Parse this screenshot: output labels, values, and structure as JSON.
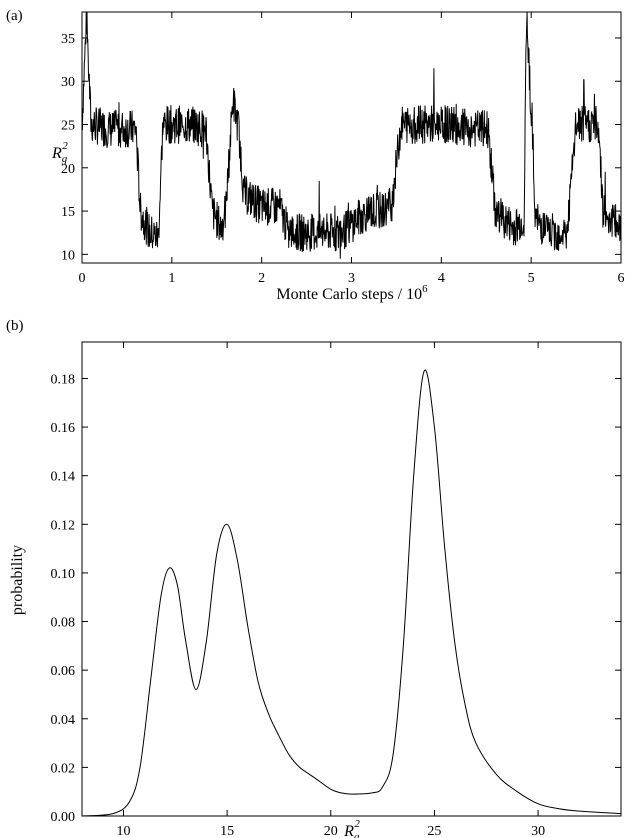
{
  "chart_data": [
    {
      "type": "line",
      "panel_label": "(a)",
      "xlabel": "Monte Carlo steps / 10",
      "xlabel_exponent": "6",
      "ylabel_base": "R",
      "ylabel_sub": "g",
      "ylabel_sup": "2",
      "xlim": [
        0,
        6
      ],
      "ylim": [
        9,
        38
      ],
      "x_ticks": [
        0,
        1,
        2,
        3,
        4,
        5,
        6
      ],
      "x_tick_labels": [
        "0",
        "1",
        "2",
        "3",
        "4",
        "5",
        "6"
      ],
      "y_ticks": [
        10,
        15,
        20,
        25,
        30,
        35
      ],
      "y_tick_labels": [
        "10",
        "15",
        "20",
        "25",
        "30",
        "35"
      ],
      "grid": false,
      "series": [
        {
          "x": [
            0,
            0.05,
            0.1,
            0.3,
            0.6,
            0.65,
            0.75,
            0.85,
            0.9,
            1.0,
            1.2,
            1.38,
            1.45,
            1.55,
            1.6,
            1.68,
            1.75,
            1.8,
            2.0,
            2.2,
            2.3,
            2.6,
            2.9,
            3.05,
            3.2,
            3.35,
            3.45,
            3.55,
            3.8,
            4.1,
            4.3,
            4.52,
            4.6,
            4.8,
            4.92,
            4.95,
            5.05,
            5.2,
            5.4,
            5.5,
            5.6,
            5.75,
            5.8,
            6.0
          ],
          "y": [
            25,
            37.5,
            25,
            24.5,
            24.5,
            15,
            12.5,
            12,
            25,
            25,
            25,
            24.5,
            15,
            13,
            15,
            28,
            24,
            17,
            15.5,
            15.5,
            12.5,
            12.5,
            12.5,
            14,
            15,
            15,
            16,
            25,
            25,
            25,
            24.5,
            24.5,
            15,
            13,
            14,
            38.5,
            14,
            12.5,
            12.5,
            25,
            25,
            25,
            15,
            13
          ]
        }
      ]
    },
    {
      "type": "line",
      "panel_label": "(b)",
      "xlabel_base": "R",
      "xlabel_sub": "g",
      "xlabel_sup": "2",
      "ylabel": "probability",
      "xlim": [
        8,
        34
      ],
      "ylim": [
        0,
        0.195
      ],
      "x_ticks": [
        10,
        15,
        20,
        25,
        30
      ],
      "x_tick_labels": [
        "10",
        "15",
        "20",
        "25",
        "30"
      ],
      "y_ticks": [
        0,
        0.02,
        0.04,
        0.06,
        0.08,
        0.1,
        0.12,
        0.14,
        0.16,
        0.18
      ],
      "y_tick_labels": [
        "0.00",
        "0.02",
        "0.04",
        "0.06",
        "0.08",
        "0.10",
        "0.12",
        "0.14",
        "0.16",
        "0.18"
      ],
      "grid": false,
      "series": [
        {
          "x": [
            8,
            9.5,
            10.3,
            10.8,
            11.3,
            11.8,
            12.2,
            12.6,
            13.0,
            13.5,
            14.0,
            14.5,
            15.0,
            15.5,
            16.0,
            16.5,
            17.0,
            17.5,
            18.0,
            18.5,
            19.0,
            19.5,
            20.0,
            20.5,
            21.0,
            22.0,
            22.5,
            23.0,
            23.5,
            24.0,
            24.5,
            25.0,
            25.5,
            26.0,
            26.5,
            27.0,
            28.0,
            29.0,
            30.0,
            31.0,
            32.0,
            34.0
          ],
          "y": [
            0,
            0.001,
            0.006,
            0.02,
            0.055,
            0.09,
            0.102,
            0.095,
            0.072,
            0.052,
            0.072,
            0.108,
            0.12,
            0.105,
            0.078,
            0.055,
            0.042,
            0.033,
            0.025,
            0.02,
            0.017,
            0.014,
            0.011,
            0.0095,
            0.009,
            0.0095,
            0.012,
            0.025,
            0.07,
            0.14,
            0.183,
            0.16,
            0.11,
            0.07,
            0.045,
            0.03,
            0.017,
            0.01,
            0.005,
            0.003,
            0.002,
            0.001
          ]
        }
      ]
    }
  ]
}
